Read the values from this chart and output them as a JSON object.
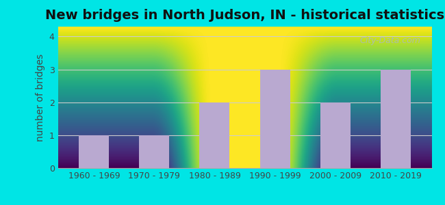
{
  "title": "New bridges in North Judson, IN - historical statistics",
  "categories": [
    "1960 - 1969",
    "1970 - 1979",
    "1980 - 1989",
    "1990 - 1999",
    "2000 - 2009",
    "2010 - 2019"
  ],
  "values": [
    1,
    1,
    2,
    3,
    2,
    3
  ],
  "bar_color": "#b9a9d0",
  "ylabel": "number of bridges",
  "ylim": [
    0,
    4.3
  ],
  "yticks": [
    0,
    1,
    2,
    3,
    4
  ],
  "background_color": "#00e5e5",
  "grad_top": "#f0f0f0",
  "grad_bottom": "#e0f0e0",
  "grid_color": "#cccccc",
  "title_fontsize": 14,
  "axis_fontsize": 10,
  "tick_fontsize": 9,
  "watermark_text": "City-Data.com",
  "watermark_color": "#aabbbb"
}
